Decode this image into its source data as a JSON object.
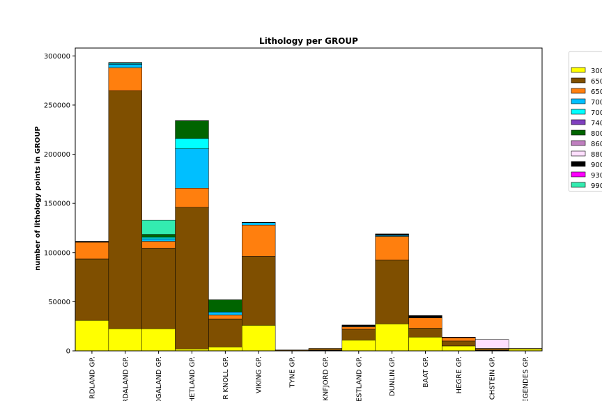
{
  "chart_data": {
    "type": "bar",
    "stacked": true,
    "title": "Lithology per GROUP",
    "xlabel": "",
    "ylabel": "number of lithology points in GROUP",
    "ylim": [
      0,
      308000
    ],
    "yticks": [
      0,
      50000,
      100000,
      150000,
      200000,
      250000,
      300000
    ],
    "ytick_labels": [
      "0",
      "50000",
      "100000",
      "150000",
      "200000",
      "250000",
      "300000"
    ],
    "grid": false,
    "legend_position": "right",
    "categories": [
      "NORDLAND GP.",
      "HORDALAND GP.",
      "ROGALAND GP.",
      "SHETLAND GP.",
      "CROMER KNOLL GP.",
      "VIKING GP.",
      "TYNE GP.",
      "BOKNFJORD GP.",
      "VESTLAND GP.",
      "DUNLIN GP.",
      "BAAT GP.",
      "HEGRE GP.",
      "ZECHSTEIN GP.",
      "ROTLIEGENDES GP."
    ],
    "category_labels": [
      "RDLAND GP.",
      "RDALAND GP.",
      "OGALAND GP.",
      "HETLAND GP.",
      "R KNOLL GP.",
      "VIKING GP.",
      "TYNE GP.",
      "KNFJORD GP.",
      "ESTLAND GP.",
      "DUNLIN GP.",
      "BAAT GP.",
      "HEGRE GP.",
      "CHSTEIN GP.",
      "EGENDES GP."
    ],
    "series": [
      {
        "name": "300",
        "color": "#ffff00",
        "values": [
          31000,
          22500,
          22500,
          2000,
          4000,
          26000,
          300,
          500,
          11000,
          27500,
          14000,
          5000,
          500,
          2000
        ]
      },
      {
        "name": "650",
        "color": "#7f4f00",
        "values": [
          62500,
          242000,
          82000,
          144000,
          28500,
          70000,
          700,
          2000,
          11000,
          65000,
          9000,
          5000,
          2000,
          500
        ]
      },
      {
        "name": "650",
        "color": "#ff7f0e",
        "values": [
          17000,
          23500,
          7000,
          19500,
          4000,
          32000,
          0,
          0,
          2500,
          24000,
          10500,
          3500,
          0,
          0
        ]
      },
      {
        "name": "700",
        "color": "#00bfff",
        "values": [
          0,
          3500,
          2500,
          40000,
          3000,
          2500,
          0,
          0,
          500,
          1000,
          0,
          0,
          0,
          0
        ]
      },
      {
        "name": "700",
        "color": "#00ffff",
        "values": [
          0,
          1000,
          1500,
          10500,
          0,
          0,
          0,
          0,
          0,
          0,
          0,
          0,
          0,
          0
        ]
      },
      {
        "name": "740",
        "color": "#7f3fbf",
        "values": [
          0,
          0,
          0,
          0,
          0,
          0,
          0,
          0,
          0,
          0,
          0,
          0,
          0,
          0
        ]
      },
      {
        "name": "800",
        "color": "#006400",
        "values": [
          0,
          0,
          3000,
          18000,
          12500,
          0,
          0,
          0,
          0,
          0,
          0,
          0,
          0,
          0
        ]
      },
      {
        "name": "860",
        "color": "#bf7fbf",
        "values": [
          0,
          0,
          0,
          0,
          0,
          0,
          0,
          0,
          0,
          0,
          0,
          0,
          0,
          0
        ]
      },
      {
        "name": "880",
        "color": "#ffdfff",
        "values": [
          0,
          0,
          0,
          0,
          0,
          0,
          0,
          0,
          0,
          0,
          0,
          0,
          9000,
          0
        ]
      },
      {
        "name": "900",
        "color": "#000000",
        "values": [
          1000,
          800,
          0,
          200,
          0,
          300,
          0,
          0,
          1300,
          1500,
          2500,
          500,
          0,
          0
        ]
      },
      {
        "name": "930",
        "color": "#ff00ff",
        "values": [
          0,
          0,
          0,
          0,
          0,
          0,
          0,
          0,
          0,
          0,
          0,
          0,
          0,
          0
        ]
      },
      {
        "name": "990",
        "color": "#33ecb0",
        "values": [
          0,
          0,
          14500,
          0,
          0,
          0,
          0,
          0,
          0,
          0,
          0,
          0,
          0,
          0
        ]
      }
    ]
  }
}
